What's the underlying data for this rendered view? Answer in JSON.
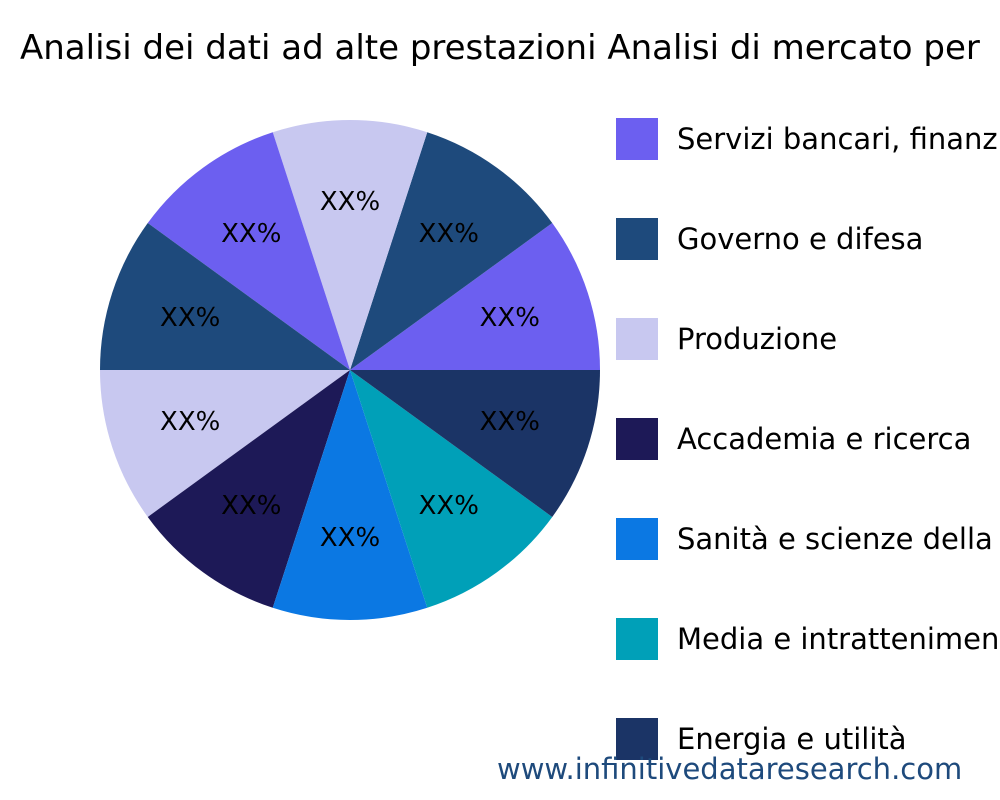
{
  "chart_data": {
    "type": "pie",
    "title": "Analisi dei dati ad alte prestazioni Analisi di mercato per",
    "slice_label": "XX%",
    "slices": [
      {
        "value": 10,
        "color": "#6c5ff0"
      },
      {
        "value": 10,
        "color": "#1e4a7c"
      },
      {
        "value": 10,
        "color": "#c8c8f0"
      },
      {
        "value": 10,
        "color": "#6c5ff0"
      },
      {
        "value": 10,
        "color": "#1e4a7c"
      },
      {
        "value": 10,
        "color": "#c8c8f0"
      },
      {
        "value": 10,
        "color": "#1d1957"
      },
      {
        "value": 10,
        "color": "#0b78e3"
      },
      {
        "value": 10,
        "color": "#00a0b8"
      },
      {
        "value": 10,
        "color": "#1b3466"
      }
    ],
    "legend": [
      {
        "label": "Servizi bancari, finanz",
        "color": "#6c5ff0"
      },
      {
        "label": "Governo e difesa",
        "color": "#1e4a7c"
      },
      {
        "label": "Produzione",
        "color": "#c8c8f0"
      },
      {
        "label": "Accademia e ricerca",
        "color": "#1d1957"
      },
      {
        "label": "Sanità e scienze della",
        "color": "#0b78e3"
      },
      {
        "label": "Media e intrattenimen",
        "color": "#00a0b8"
      },
      {
        "label": "Energia e utilità",
        "color": "#1b3466"
      }
    ],
    "legend_position": "right"
  },
  "watermark": {
    "text": "www.infinitivedataresearch.com",
    "color": "#1e4a7c"
  }
}
